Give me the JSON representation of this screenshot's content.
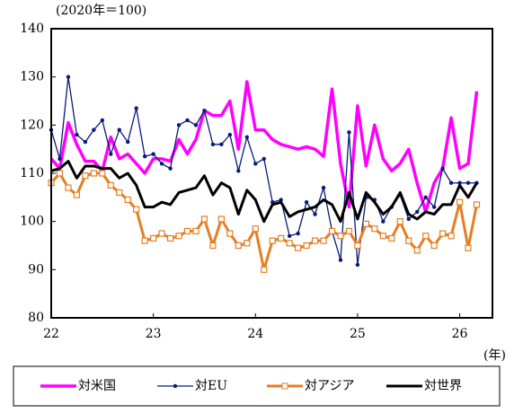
{
  "chart_data": {
    "type": "line",
    "subtitle": "(2020年＝100)",
    "x_label": "(年)",
    "categories": [
      "22",
      null,
      null,
      null,
      null,
      null,
      null,
      null,
      null,
      null,
      null,
      null,
      "23",
      null,
      null,
      null,
      null,
      null,
      null,
      null,
      null,
      null,
      null,
      null,
      "24",
      null,
      null,
      null,
      null,
      null,
      null,
      null,
      null,
      null,
      null,
      null,
      "25",
      null,
      null,
      null,
      null,
      null,
      null,
      null,
      null,
      null,
      null,
      null,
      "26",
      null,
      null
    ],
    "ylim": [
      80,
      140
    ],
    "yticks": [
      80,
      90,
      100,
      110,
      120,
      130,
      140
    ],
    "legend": "bottom",
    "series": [
      {
        "name": "対米国",
        "color": "#ff00ff",
        "marker": null,
        "width": 3.5,
        "values": [
          113,
          111,
          120.5,
          116,
          112.5,
          112.5,
          110.5,
          117.5,
          113,
          114,
          112,
          110,
          113,
          113,
          112.5,
          117,
          114,
          117,
          123,
          122,
          122,
          125,
          115,
          129,
          119,
          119,
          117,
          116,
          115.5,
          115,
          115.5,
          115,
          113.5,
          127.5,
          112,
          103,
          124,
          111.5,
          120,
          113,
          110.5,
          112,
          115,
          108,
          102,
          108,
          111,
          121.5,
          111,
          112,
          127
        ]
      },
      {
        "name": "対EU",
        "color": "#0a1a7a",
        "marker": "circle",
        "width": 1.3,
        "values": [
          119,
          113,
          130,
          118,
          116.5,
          119,
          121,
          114,
          119,
          116.5,
          123.5,
          113.5,
          114,
          112,
          111,
          120,
          121,
          120,
          123,
          116,
          116,
          118,
          110.5,
          117.5,
          112,
          113,
          104,
          104.5,
          97,
          97.5,
          104,
          101.5,
          107,
          98,
          92,
          118.5,
          91,
          105,
          104.5,
          100,
          103,
          105.5,
          100.5,
          102,
          105,
          103,
          111,
          108,
          108,
          108,
          108
        ]
      },
      {
        "name": "対アジア",
        "color": "#e67e22",
        "marker": "square",
        "width": 3,
        "values": [
          108,
          110,
          107,
          105.5,
          109.5,
          110,
          110,
          107.5,
          106,
          104.5,
          102.5,
          96,
          96.5,
          97.5,
          96.5,
          97,
          98,
          98,
          100.5,
          95,
          100.5,
          97.5,
          95,
          95.5,
          98.5,
          90,
          96,
          96.5,
          95.5,
          94.5,
          95,
          96,
          96,
          98,
          97,
          98,
          95,
          99.5,
          98.5,
          97,
          96.5,
          100,
          96,
          94,
          97,
          95,
          97.5,
          97,
          104,
          94.5,
          103.5
        ]
      },
      {
        "name": "対世界",
        "color": "#000000",
        "marker": null,
        "width": 3,
        "values": [
          110.5,
          111,
          112.5,
          109,
          111.5,
          111.5,
          111,
          111,
          109,
          110,
          107.5,
          103,
          103,
          104,
          103.5,
          106,
          106.5,
          107,
          109.5,
          105.5,
          108,
          107,
          101.5,
          106.5,
          104.5,
          100,
          103.5,
          104,
          101,
          102,
          102.5,
          103,
          104.5,
          103.5,
          100,
          106,
          100.5,
          106,
          104,
          101.5,
          103,
          106,
          101.5,
          100.5,
          102,
          101.5,
          103.5,
          103.5,
          107.5,
          105,
          108
        ]
      }
    ]
  }
}
